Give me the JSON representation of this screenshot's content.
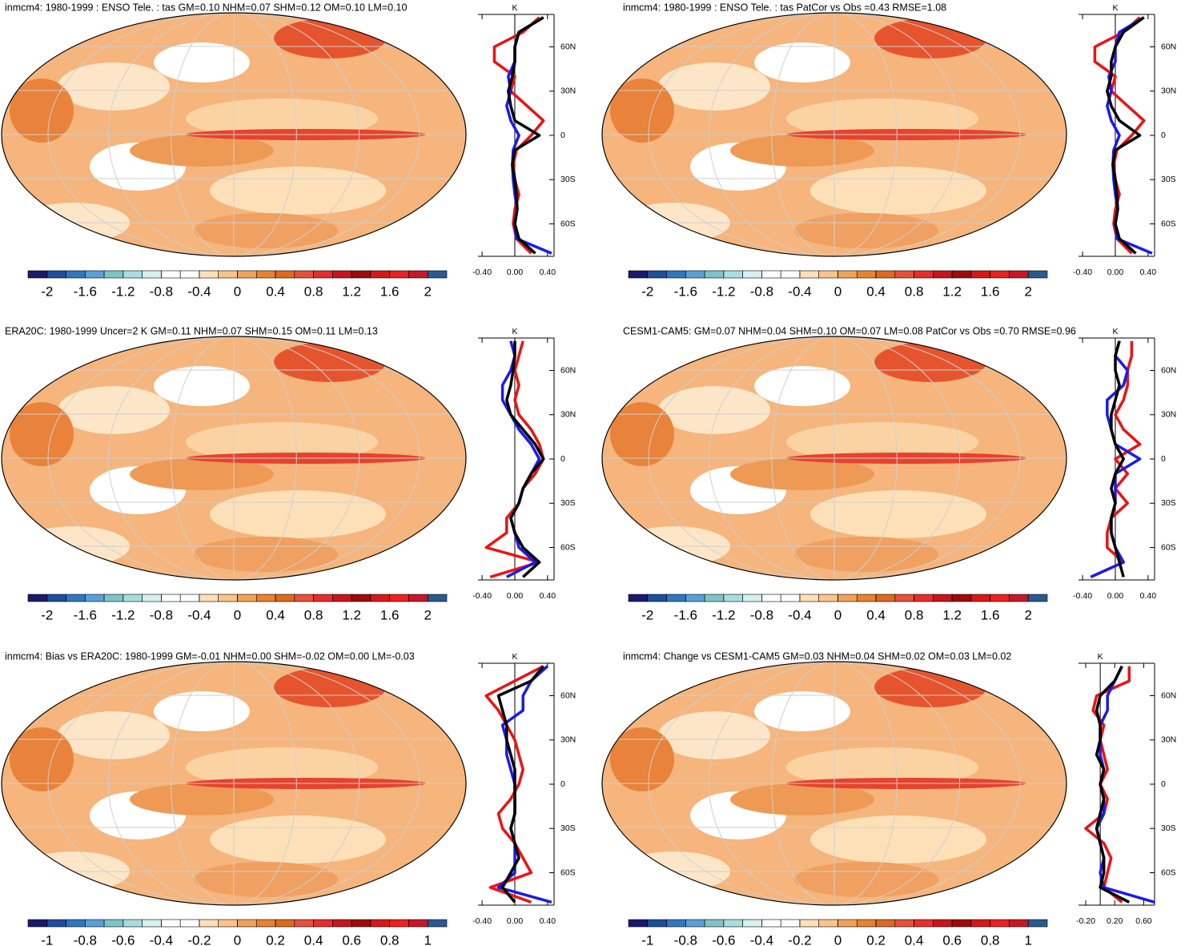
{
  "chart_data": [
    {
      "type": "map",
      "title": "inmcm4: 1980-1999 : ENSO Tele. : tas GM=0.10 NHM=0.07 SHM=0.12 OM=0.10 LM=0.10",
      "colorbar": {
        "xlim": [
          -2.2,
          2.2
        ],
        "ticks": [
          -2,
          -1.6,
          -1.2,
          -0.8,
          -0.4,
          0,
          0.4,
          0.8,
          1.2,
          1.6,
          2
        ],
        "colors": [
          "#1a1a6e",
          "#1f4e9c",
          "#2f78c0",
          "#5aa0d8",
          "#7ec3c8",
          "#a8dde0",
          "#d6f0f0",
          "#ffffff",
          "#ffffff",
          "#fde0b8",
          "#f9c48a",
          "#f2a257",
          "#e8822f",
          "#dd6a1e",
          "#e8503a",
          "#e82c2c",
          "#c8141e",
          "#a00a0a",
          "#d81818",
          "#ee2020",
          "#c81828",
          "#2a5a8c"
        ]
      },
      "zonal": {
        "unit": "K",
        "lat": [
          -80,
          -70,
          -60,
          -50,
          -40,
          -30,
          -20,
          -10,
          0,
          10,
          20,
          30,
          40,
          50,
          60,
          70,
          80
        ],
        "xlim": [
          -0.45,
          0.48
        ],
        "xticks": [
          {
            "value": -0.4,
            "label": "-0.40"
          },
          {
            "value": 0,
            "label": "0.00"
          },
          {
            "value": 0.4,
            "label": "0.40"
          }
        ],
        "ylim": [
          -82,
          82
        ],
        "yticks": [
          {
            "value": -60,
            "label": "60S"
          },
          {
            "value": -30,
            "label": "30S"
          },
          0,
          {
            "value": 30,
            "label": "30N"
          },
          {
            "value": 60,
            "label": "60N"
          }
        ],
        "series": [
          {
            "color": "#ee1111",
            "values": [
              0.2,
              0.02,
              -0.02,
              0.0,
              0.05,
              0.0,
              -0.02,
              0.02,
              0.2,
              0.35,
              0.15,
              -0.05,
              0.0,
              -0.25,
              -0.25,
              0.1,
              0.3
            ]
          },
          {
            "color": "#1a1aee",
            "values": [
              0.45,
              0.02,
              0.0,
              0.03,
              0.0,
              -0.02,
              -0.03,
              -0.02,
              0.05,
              -0.05,
              -0.1,
              -0.05,
              -0.08,
              0.0,
              0.0,
              0.05,
              0.35
            ]
          },
          {
            "color": "#000000",
            "values": [
              0.25,
              0.05,
              0.0,
              0.03,
              0.02,
              0.0,
              -0.03,
              0.0,
              0.3,
              0.0,
              -0.05,
              -0.08,
              -0.03,
              0.0,
              0.0,
              0.05,
              0.35
            ]
          }
        ]
      }
    },
    {
      "type": "map",
      "title": "inmcm4: 1980-1999 : ENSO Tele. : tas PatCor vs Obs =0.43 RMSE=1.08",
      "colorbar": {
        "xlim": [
          -2.2,
          2.2
        ],
        "ticks": [
          -2,
          -1.6,
          -1.2,
          -0.8,
          -0.4,
          0,
          0.4,
          0.8,
          1.2,
          1.6,
          2
        ],
        "colors": [
          "#1a1a6e",
          "#1f4e9c",
          "#2f78c0",
          "#5aa0d8",
          "#7ec3c8",
          "#a8dde0",
          "#d6f0f0",
          "#ffffff",
          "#ffffff",
          "#fde0b8",
          "#f9c48a",
          "#f2a257",
          "#e8822f",
          "#dd6a1e",
          "#e8503a",
          "#e82c2c",
          "#c8141e",
          "#a00a0a",
          "#d81818",
          "#ee2020",
          "#c81828",
          "#2a5a8c"
        ]
      },
      "zonal": {
        "unit": "K",
        "lat": [
          -80,
          -70,
          -60,
          -50,
          -40,
          -30,
          -20,
          -10,
          0,
          10,
          20,
          30,
          40,
          50,
          60,
          70,
          80
        ],
        "xlim": [
          -0.45,
          0.48
        ],
        "xticks": [
          {
            "value": -0.4,
            "label": "-0.40"
          },
          {
            "value": 0,
            "label": "0.00"
          },
          {
            "value": 0.4,
            "label": "0.40"
          }
        ],
        "ylim": [
          -82,
          82
        ],
        "yticks": [
          {
            "value": -60,
            "label": "60S"
          },
          {
            "value": -30,
            "label": "30S"
          },
          0,
          {
            "value": 30,
            "label": "30N"
          },
          {
            "value": 60,
            "label": "60N"
          }
        ],
        "series": [
          {
            "color": "#ee1111",
            "values": [
              0.2,
              0.02,
              -0.02,
              0.0,
              0.05,
              0.0,
              -0.02,
              0.02,
              0.2,
              0.35,
              0.15,
              -0.05,
              0.0,
              -0.25,
              -0.25,
              0.1,
              0.3
            ]
          },
          {
            "color": "#1a1aee",
            "values": [
              0.45,
              0.02,
              0.0,
              0.03,
              0.0,
              -0.02,
              -0.03,
              -0.02,
              0.05,
              -0.05,
              -0.1,
              -0.05,
              -0.08,
              0.0,
              0.0,
              0.05,
              0.35
            ]
          },
          {
            "color": "#000000",
            "values": [
              0.25,
              0.05,
              0.0,
              0.03,
              0.02,
              0.0,
              -0.03,
              0.0,
              0.3,
              0.05,
              -0.05,
              -0.1,
              -0.05,
              -0.05,
              0.0,
              0.1,
              0.35
            ]
          }
        ]
      }
    },
    {
      "type": "map",
      "title": "ERA20C: 1980-1999 Uncer=2 K GM=0.11 NHM=0.07 SHM=0.15 OM=0.11 LM=0.13",
      "colorbar": {
        "xlim": [
          -2.2,
          2.2
        ],
        "ticks": [
          -2,
          -1.6,
          -1.2,
          -0.8,
          -0.4,
          0,
          0.4,
          0.8,
          1.2,
          1.6,
          2
        ],
        "colors": [
          "#1a1a6e",
          "#1f4e9c",
          "#2f78c0",
          "#5aa0d8",
          "#7ec3c8",
          "#a8dde0",
          "#d6f0f0",
          "#ffffff",
          "#ffffff",
          "#fde0b8",
          "#f9c48a",
          "#f2a257",
          "#e8822f",
          "#dd6a1e",
          "#e8503a",
          "#e82c2c",
          "#c8141e",
          "#a00a0a",
          "#d81818",
          "#ee2020",
          "#c81828",
          "#2a5a8c"
        ]
      },
      "zonal": {
        "unit": "K",
        "lat": [
          -80,
          -70,
          -60,
          -50,
          -40,
          -30,
          -20,
          -10,
          0,
          10,
          20,
          30,
          40,
          50,
          60,
          70,
          80
        ],
        "xlim": [
          -0.45,
          0.48
        ],
        "xticks": [
          {
            "value": -0.4,
            "label": "-0.40"
          },
          {
            "value": 0,
            "label": "0.00"
          },
          {
            "value": 0.4,
            "label": "0.40"
          }
        ],
        "ylim": [
          -82,
          82
        ],
        "yticks": [
          {
            "value": -60,
            "label": "60S"
          },
          {
            "value": -30,
            "label": "30S"
          },
          0,
          {
            "value": 30,
            "label": "30N"
          },
          {
            "value": 60,
            "label": "60N"
          }
        ],
        "series": [
          {
            "color": "#ee1111",
            "values": [
              -0.3,
              0.3,
              -0.35,
              -0.1,
              -0.1,
              0.05,
              0.1,
              0.25,
              0.35,
              0.3,
              0.2,
              0.05,
              0.0,
              0.05,
              0.0,
              0.05,
              0.1
            ]
          },
          {
            "color": "#1a1aee",
            "values": [
              -0.1,
              0.25,
              0.05,
              0.0,
              -0.05,
              0.05,
              0.1,
              0.2,
              0.3,
              0.2,
              0.05,
              -0.05,
              -0.15,
              -0.15,
              -0.05,
              0.0,
              -0.05
            ]
          },
          {
            "color": "#000000",
            "values": [
              0.1,
              0.3,
              0.1,
              0.0,
              -0.05,
              0.05,
              0.1,
              0.2,
              0.35,
              0.25,
              0.1,
              -0.05,
              -0.1,
              -0.05,
              -0.02,
              0.0,
              0.0
            ]
          }
        ]
      }
    },
    {
      "type": "map",
      "title": "CESM1-CAM5: GM=0.07 NHM=0.04 SHM=0.10 OM=0.07 LM=0.08 PatCor vs Obs =0.70 RMSE=0.96",
      "colorbar": {
        "xlim": [
          -2.2,
          2.2
        ],
        "ticks": [
          -2,
          -1.6,
          -1.2,
          -0.8,
          -0.4,
          0,
          0.4,
          0.8,
          1.2,
          1.6,
          2
        ],
        "colors": [
          "#1a1a6e",
          "#1f4e9c",
          "#2f78c0",
          "#5aa0d8",
          "#7ec3c8",
          "#a8dde0",
          "#d6f0f0",
          "#ffffff",
          "#ffffff",
          "#fde0b8",
          "#f9c48a",
          "#f2a257",
          "#e8822f",
          "#dd6a1e",
          "#e8503a",
          "#e82c2c",
          "#c8141e",
          "#a00a0a",
          "#d81818",
          "#ee2020",
          "#c81828",
          "#2a5a8c"
        ]
      },
      "zonal": {
        "unit": "K",
        "lat": [
          -80,
          -70,
          -60,
          -50,
          -40,
          -30,
          -20,
          -10,
          0,
          10,
          20,
          30,
          40,
          50,
          60,
          70,
          80
        ],
        "xlim": [
          -0.45,
          0.48
        ],
        "xticks": [
          {
            "value": -0.4,
            "label": "-0.40"
          },
          {
            "value": 0,
            "label": "0.00"
          },
          {
            "value": 0.4,
            "label": "0.40"
          }
        ],
        "ylim": [
          -82,
          82
        ],
        "yticks": [
          {
            "value": -60,
            "label": "60S"
          },
          {
            "value": -30,
            "label": "30S"
          },
          0,
          {
            "value": 30,
            "label": "30N"
          },
          {
            "value": 60,
            "label": "60N"
          }
        ],
        "series": [
          {
            "color": "#ee1111",
            "values": [
              -0.3,
              0.1,
              -0.1,
              -0.1,
              -0.05,
              0.15,
              0.0,
              0.15,
              0.0,
              0.3,
              0.1,
              0.0,
              0.1,
              0.15,
              0.15,
              0.2,
              0.2
            ]
          },
          {
            "color": "#1a1aee",
            "values": [
              -0.3,
              0.1,
              0.0,
              -0.05,
              -0.05,
              0.0,
              0.0,
              0.0,
              0.3,
              0.0,
              -0.05,
              -0.1,
              -0.1,
              0.1,
              0.15,
              0.0,
              0.05
            ]
          },
          {
            "color": "#000000",
            "values": [
              0.1,
              0.05,
              0.0,
              -0.05,
              -0.05,
              0.0,
              -0.05,
              0.0,
              0.1,
              0.0,
              -0.05,
              -0.05,
              0.0,
              0.05,
              0.0,
              0.0,
              0.05
            ]
          }
        ]
      }
    },
    {
      "type": "map",
      "title": "inmcm4: Bias vs ERA20C: 1980-1999 GM=-0.01 NHM=0.00 SHM=-0.02 OM=0.00 LM=-0.03",
      "colorbar": {
        "xlim": [
          -1.1,
          1.1
        ],
        "ticks": [
          -1,
          -0.8,
          -0.6,
          -0.4,
          -0.2,
          0,
          0.2,
          0.4,
          0.6,
          0.8,
          1
        ],
        "colors": [
          "#1a1a6e",
          "#1f4e9c",
          "#2f78c0",
          "#5aa0d8",
          "#7ec3c8",
          "#a8dde0",
          "#d6f0f0",
          "#ffffff",
          "#ffffff",
          "#fde0b8",
          "#f9c48a",
          "#f2a257",
          "#e8822f",
          "#dd6a1e",
          "#e8503a",
          "#e82c2c",
          "#c8141e",
          "#a00a0a",
          "#d81818",
          "#ee2020",
          "#c81828",
          "#2a5a8c"
        ]
      },
      "zonal": {
        "unit": "K",
        "lat": [
          -80,
          -70,
          -60,
          -50,
          -40,
          -30,
          -20,
          -10,
          0,
          10,
          20,
          30,
          40,
          50,
          60,
          70,
          80
        ],
        "xlim": [
          -0.45,
          0.48
        ],
        "xticks": [
          {
            "value": -0.4,
            "label": "-0.40"
          },
          {
            "value": 0,
            "label": "0.00"
          },
          {
            "value": 0.4,
            "label": "0.40"
          }
        ],
        "ylim": [
          -82,
          82
        ],
        "yticks": [
          {
            "value": -60,
            "label": "60S"
          },
          {
            "value": -30,
            "label": "30S"
          },
          0,
          {
            "value": 30,
            "label": "30N"
          },
          {
            "value": 60,
            "label": "60N"
          }
        ],
        "series": [
          {
            "color": "#ee1111",
            "values": [
              0.2,
              -0.3,
              0.2,
              0.1,
              0.0,
              -0.15,
              -0.2,
              -0.05,
              0.05,
              0.1,
              0.05,
              0.0,
              -0.1,
              -0.2,
              -0.35,
              0.0,
              0.35
            ]
          },
          {
            "color": "#1a1aee",
            "values": [
              0.45,
              -0.2,
              0.0,
              0.0,
              0.0,
              -0.05,
              0.0,
              0.0,
              0.0,
              -0.05,
              -0.1,
              -0.1,
              -0.15,
              0.1,
              0.1,
              0.2,
              0.4
            ]
          },
          {
            "color": "#000000",
            "values": [
              0.0,
              -0.15,
              -0.05,
              0.05,
              0.0,
              -0.05,
              0.0,
              0.0,
              0.0,
              0.0,
              -0.05,
              -0.1,
              -0.1,
              -0.15,
              -0.2,
              0.2,
              0.35
            ]
          }
        ]
      }
    },
    {
      "type": "map",
      "title": "inmcm4: Change vs CESM1-CAM5 GM=0.03 NHM=0.04 SHM=0.02 OM=0.03 LM=0.02",
      "colorbar": {
        "xlim": [
          -1.1,
          1.1
        ],
        "ticks": [
          -1,
          -0.8,
          -0.6,
          -0.4,
          -0.2,
          0,
          0.2,
          0.4,
          0.6,
          0.8,
          1
        ],
        "colors": [
          "#1a1a6e",
          "#1f4e9c",
          "#2f78c0",
          "#5aa0d8",
          "#7ec3c8",
          "#a8dde0",
          "#d6f0f0",
          "#ffffff",
          "#ffffff",
          "#fde0b8",
          "#f9c48a",
          "#f2a257",
          "#e8822f",
          "#dd6a1e",
          "#e8503a",
          "#e82c2c",
          "#c8141e",
          "#a00a0a",
          "#d81818",
          "#ee2020",
          "#c81828",
          "#2a5a8c"
        ]
      },
      "zonal": {
        "unit": "K",
        "lat": [
          -80,
          -70,
          -60,
          -50,
          -40,
          -30,
          -20,
          -10,
          0,
          10,
          20,
          30,
          40,
          50,
          60,
          70,
          80
        ],
        "xlim": [
          -0.3,
          0.75
        ],
        "xticks": [
          {
            "value": -0.2,
            "label": "-0.20"
          },
          {
            "value": 0.2,
            "label": "0.20"
          },
          {
            "value": 0.6,
            "label": "0.60"
          }
        ],
        "ylim": [
          -82,
          82
        ],
        "yticks": [
          {
            "value": -60,
            "label": "60S"
          },
          {
            "value": -30,
            "label": "30S"
          },
          0,
          {
            "value": 30,
            "label": "30N"
          },
          {
            "value": 60,
            "label": "60N"
          }
        ],
        "series": [
          {
            "color": "#ee1111",
            "values": [
              0.3,
              0.05,
              0.1,
              0.15,
              0.05,
              -0.2,
              0.05,
              0.1,
              0.0,
              0.1,
              0.05,
              0.0,
              0.05,
              -0.1,
              -0.05,
              0.4,
              0.4
            ]
          },
          {
            "color": "#1a1aee",
            "values": [
              0.75,
              0.05,
              0.0,
              0.05,
              0.0,
              -0.05,
              0.05,
              0.05,
              0.0,
              0.05,
              0.0,
              0.0,
              0.0,
              0.1,
              0.1,
              0.2,
              0.3
            ]
          },
          {
            "color": "#000000",
            "values": [
              0.4,
              0.0,
              0.05,
              0.05,
              0.0,
              -0.05,
              0.0,
              0.05,
              0.0,
              0.05,
              -0.05,
              0.0,
              0.0,
              -0.05,
              0.0,
              0.2,
              0.3
            ]
          }
        ]
      }
    }
  ]
}
